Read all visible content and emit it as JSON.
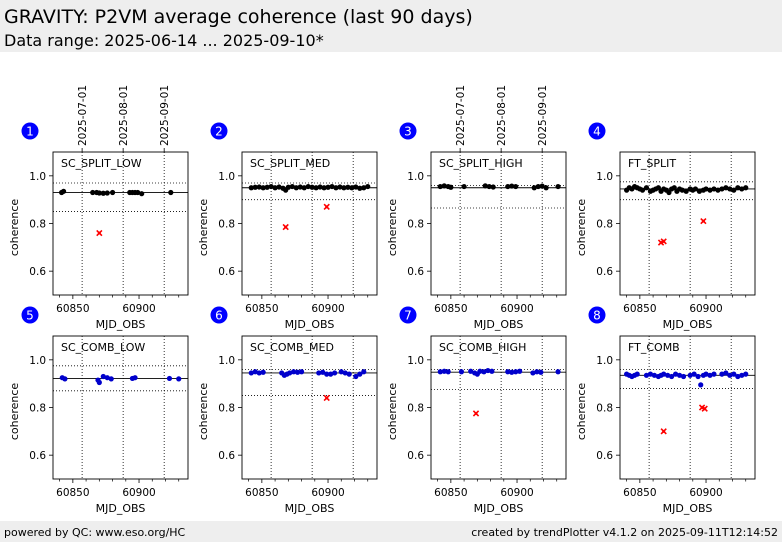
{
  "header": {
    "title": "GRAVITY: P2VM average coherence (last 90 days)",
    "subtitle": "Data range: 2025-06-14 ... 2025-09-10*"
  },
  "footer": {
    "left": "powered by QC: www.eso.org/HC",
    "right": "created by trendPlotter v4.1.2 on 2025-09-11T12:14:52"
  },
  "colors": {
    "black": "#000000",
    "blue": "#0000cc",
    "red": "#ff0000",
    "badge": "#0000ff"
  },
  "chart_data": [
    {
      "type": "scatter",
      "panel": "1",
      "label": "SC_SPLIT_LOW",
      "xlabel": "MJD_OBS",
      "ylabel": "coherence",
      "xticks": [
        60850,
        60900
      ],
      "yticks": [
        0.6,
        0.8,
        1.0
      ],
      "ylim": [
        0.5,
        1.1
      ],
      "top_ticks": [
        "2025-07-01",
        "2025-08-01",
        "2025-09-01"
      ],
      "median": 0.93,
      "limits": [
        0.97,
        0.85
      ],
      "series": [
        {
          "color": "black",
          "points": [
            [
              60841.5,
              0.93
            ],
            [
              60843,
              0.935
            ],
            [
              60865,
              0.93
            ],
            [
              60868,
              0.93
            ],
            [
              60870,
              0.928
            ],
            [
              60873,
              0.927
            ],
            [
              60876,
              0.928
            ],
            [
              60880,
              0.93
            ],
            [
              60893,
              0.93
            ],
            [
              60895,
              0.93
            ],
            [
              60897,
              0.93
            ],
            [
              60899,
              0.93
            ],
            [
              60902,
              0.925
            ],
            [
              60924,
              0.93
            ]
          ]
        },
        {
          "color": "red",
          "marker": "x",
          "points": [
            [
              60870,
              0.76
            ]
          ]
        }
      ]
    },
    {
      "type": "scatter",
      "panel": "2",
      "label": "SC_SPLIT_MED",
      "xlabel": "MJD_OBS",
      "ylabel": "coherence",
      "xticks": [
        60850,
        60900
      ],
      "yticks": [
        0.6,
        0.8,
        1.0
      ],
      "ylim": [
        0.5,
        1.1
      ],
      "top_ticks": [],
      "median": 0.95,
      "limits": [
        0.97,
        0.9
      ],
      "series": [
        {
          "color": "black",
          "points": [
            [
              60842,
              0.95
            ],
            [
              60845,
              0.952
            ],
            [
              60848,
              0.953
            ],
            [
              60851,
              0.95
            ],
            [
              60854,
              0.952
            ],
            [
              60857,
              0.955
            ],
            [
              60860,
              0.95
            ],
            [
              60863,
              0.953
            ],
            [
              60866,
              0.948
            ],
            [
              60868,
              0.94
            ],
            [
              60870,
              0.952
            ],
            [
              60873,
              0.955
            ],
            [
              60876,
              0.95
            ],
            [
              60879,
              0.953
            ],
            [
              60882,
              0.95
            ],
            [
              60885,
              0.955
            ],
            [
              60888,
              0.952
            ],
            [
              60891,
              0.95
            ],
            [
              60894,
              0.953
            ],
            [
              60897,
              0.95
            ],
            [
              60900,
              0.952
            ],
            [
              60903,
              0.955
            ],
            [
              60906,
              0.95
            ],
            [
              60909,
              0.953
            ],
            [
              60912,
              0.95
            ],
            [
              60915,
              0.952
            ],
            [
              60918,
              0.95
            ],
            [
              60921,
              0.953
            ],
            [
              60924,
              0.948
            ],
            [
              60927,
              0.95
            ],
            [
              60930,
              0.955
            ]
          ]
        },
        {
          "color": "red",
          "marker": "x",
          "points": [
            [
              60868,
              0.785
            ],
            [
              60899,
              0.87
            ]
          ]
        }
      ]
    },
    {
      "type": "scatter",
      "panel": "3",
      "label": "SC_SPLIT_HIGH",
      "xlabel": "MJD_OBS",
      "ylabel": "coherence",
      "xticks": [
        60850,
        60900
      ],
      "yticks": [
        0.6,
        0.8,
        1.0
      ],
      "ylim": [
        0.5,
        1.1
      ],
      "top_ticks": [
        "2025-07-01",
        "2025-08-01",
        "2025-09-01"
      ],
      "median": 0.95,
      "limits": [
        0.96,
        0.865
      ],
      "series": [
        {
          "color": "black",
          "points": [
            [
              60842,
              0.955
            ],
            [
              60845,
              0.958
            ],
            [
              60848,
              0.955
            ],
            [
              60850,
              0.952
            ],
            [
              60860,
              0.955
            ],
            [
              60876,
              0.958
            ],
            [
              60879,
              0.955
            ],
            [
              60882,
              0.953
            ],
            [
              60893,
              0.955
            ],
            [
              60896,
              0.957
            ],
            [
              60899,
              0.955
            ],
            [
              60913,
              0.95
            ],
            [
              60916,
              0.955
            ],
            [
              60919,
              0.957
            ],
            [
              60922,
              0.95
            ],
            [
              60931,
              0.955
            ]
          ]
        }
      ]
    },
    {
      "type": "scatter",
      "panel": "4",
      "label": "FT_SPLIT",
      "xlabel": "MJD_OBS",
      "ylabel": "coherence",
      "xticks": [
        60850,
        60900
      ],
      "yticks": [
        0.6,
        0.8,
        1.0
      ],
      "ylim": [
        0.5,
        1.1
      ],
      "top_ticks": [],
      "median": 0.945,
      "limits": [
        0.975,
        0.9
      ],
      "series": [
        {
          "color": "black",
          "points": [
            [
              60840,
              0.94
            ],
            [
              60842,
              0.95
            ],
            [
              60844,
              0.945
            ],
            [
              60846,
              0.955
            ],
            [
              60848,
              0.95
            ],
            [
              60850,
              0.945
            ],
            [
              60852,
              0.94
            ],
            [
              60855,
              0.95
            ],
            [
              60858,
              0.935
            ],
            [
              60860,
              0.94
            ],
            [
              60862,
              0.945
            ],
            [
              60864,
              0.95
            ],
            [
              60866,
              0.935
            ],
            [
              60868,
              0.945
            ],
            [
              60870,
              0.94
            ],
            [
              60872,
              0.93
            ],
            [
              60874,
              0.945
            ],
            [
              60876,
              0.95
            ],
            [
              60878,
              0.935
            ],
            [
              60880,
              0.945
            ],
            [
              60882,
              0.94
            ],
            [
              60885,
              0.935
            ],
            [
              60888,
              0.945
            ],
            [
              60890,
              0.94
            ],
            [
              60892,
              0.945
            ],
            [
              60895,
              0.935
            ],
            [
              60898,
              0.94
            ],
            [
              60900,
              0.945
            ],
            [
              60903,
              0.94
            ],
            [
              60906,
              0.945
            ],
            [
              60909,
              0.94
            ],
            [
              60912,
              0.945
            ],
            [
              60915,
              0.95
            ],
            [
              60918,
              0.945
            ],
            [
              60921,
              0.94
            ],
            [
              60924,
              0.95
            ],
            [
              60927,
              0.945
            ],
            [
              60930,
              0.95
            ]
          ]
        },
        {
          "color": "red",
          "marker": "x",
          "points": [
            [
              60866,
              0.72
            ],
            [
              60868,
              0.725
            ],
            [
              60898,
              0.81
            ]
          ]
        }
      ]
    },
    {
      "type": "scatter",
      "panel": "5",
      "label": "SC_COMB_LOW",
      "xlabel": "MJD_OBS",
      "ylabel": "coherence",
      "xticks": [
        60850,
        60900
      ],
      "yticks": [
        0.6,
        0.8,
        1.0
      ],
      "ylim": [
        0.5,
        1.1
      ],
      "top_ticks": [],
      "median": 0.922,
      "limits": [
        0.975,
        0.87
      ],
      "series": [
        {
          "color": "blue",
          "points": [
            [
              60842,
              0.925
            ],
            [
              60844,
              0.92
            ],
            [
              60869,
              0.915
            ],
            [
              60870,
              0.905
            ],
            [
              60873,
              0.93
            ],
            [
              60876,
              0.925
            ],
            [
              60879,
              0.92
            ],
            [
              60895,
              0.922
            ],
            [
              60897,
              0.925
            ],
            [
              60923,
              0.922
            ],
            [
              60930,
              0.92
            ]
          ]
        }
      ]
    },
    {
      "type": "scatter",
      "panel": "6",
      "label": "SC_COMB_MED",
      "xlabel": "MJD_OBS",
      "ylabel": "coherence",
      "xticks": [
        60850,
        60900
      ],
      "yticks": [
        0.6,
        0.8,
        1.0
      ],
      "ylim": [
        0.5,
        1.1
      ],
      "top_ticks": [],
      "median": 0.945,
      "limits": [
        0.96,
        0.85
      ],
      "series": [
        {
          "color": "blue",
          "points": [
            [
              60842,
              0.945
            ],
            [
              60845,
              0.95
            ],
            [
              60848,
              0.945
            ],
            [
              60851,
              0.948
            ],
            [
              60865,
              0.945
            ],
            [
              60867,
              0.935
            ],
            [
              60869,
              0.94
            ],
            [
              60871,
              0.945
            ],
            [
              60874,
              0.95
            ],
            [
              60877,
              0.948
            ],
            [
              60880,
              0.95
            ],
            [
              60893,
              0.945
            ],
            [
              60896,
              0.948
            ],
            [
              60899,
              0.94
            ],
            [
              60902,
              0.94
            ],
            [
              60905,
              0.945
            ],
            [
              60910,
              0.95
            ],
            [
              60913,
              0.945
            ],
            [
              60916,
              0.94
            ],
            [
              60921,
              0.93
            ],
            [
              60924,
              0.94
            ],
            [
              60927,
              0.95
            ]
          ]
        },
        {
          "color": "red",
          "marker": "x",
          "points": [
            [
              60899,
              0.84
            ]
          ]
        }
      ]
    },
    {
      "type": "scatter",
      "panel": "7",
      "label": "SC_COMB_HIGH",
      "xlabel": "MJD_OBS",
      "ylabel": "coherence",
      "xticks": [
        60850,
        60900
      ],
      "yticks": [
        0.6,
        0.8,
        1.0
      ],
      "ylim": [
        0.5,
        1.1
      ],
      "top_ticks": [],
      "median": 0.948,
      "limits": [
        0.96,
        0.875
      ],
      "series": [
        {
          "color": "blue",
          "points": [
            [
              60842,
              0.95
            ],
            [
              60845,
              0.952
            ],
            [
              60848,
              0.95
            ],
            [
              60858,
              0.95
            ],
            [
              60865,
              0.952
            ],
            [
              60868,
              0.945
            ],
            [
              60870,
              0.94
            ],
            [
              60872,
              0.952
            ],
            [
              60875,
              0.95
            ],
            [
              60878,
              0.955
            ],
            [
              60881,
              0.952
            ],
            [
              60893,
              0.95
            ],
            [
              60896,
              0.948
            ],
            [
              60899,
              0.95
            ],
            [
              60902,
              0.952
            ],
            [
              60912,
              0.945
            ],
            [
              60915,
              0.95
            ],
            [
              60918,
              0.948
            ],
            [
              60931,
              0.95
            ]
          ]
        },
        {
          "color": "red",
          "marker": "x",
          "points": [
            [
              60869,
              0.775
            ]
          ]
        }
      ]
    },
    {
      "type": "scatter",
      "panel": "8",
      "label": "FT_COMB",
      "xlabel": "MJD_OBS",
      "ylabel": "coherence",
      "xticks": [
        60850,
        60900
      ],
      "yticks": [
        0.6,
        0.8,
        1.0
      ],
      "ylim": [
        0.5,
        1.1
      ],
      "top_ticks": [],
      "median": 0.935,
      "limits": [
        0.96,
        0.88
      ],
      "series": [
        {
          "color": "blue",
          "points": [
            [
              60840,
              0.94
            ],
            [
              60842,
              0.935
            ],
            [
              60844,
              0.93
            ],
            [
              60846,
              0.935
            ],
            [
              60848,
              0.94
            ],
            [
              60855,
              0.935
            ],
            [
              60858,
              0.94
            ],
            [
              60861,
              0.935
            ],
            [
              60864,
              0.93
            ],
            [
              60866,
              0.935
            ],
            [
              60868,
              0.94
            ],
            [
              60871,
              0.935
            ],
            [
              60874,
              0.93
            ],
            [
              60877,
              0.94
            ],
            [
              60880,
              0.935
            ],
            [
              60883,
              0.93
            ],
            [
              60888,
              0.935
            ],
            [
              60891,
              0.94
            ],
            [
              60894,
              0.93
            ],
            [
              60896,
              0.895
            ],
            [
              60898,
              0.935
            ],
            [
              60900,
              0.94
            ],
            [
              60903,
              0.935
            ],
            [
              60906,
              0.94
            ],
            [
              60912,
              0.94
            ],
            [
              60915,
              0.945
            ],
            [
              60918,
              0.935
            ],
            [
              60921,
              0.94
            ],
            [
              60924,
              0.93
            ],
            [
              60927,
              0.935
            ],
            [
              60930,
              0.94
            ]
          ]
        },
        {
          "color": "red",
          "marker": "x",
          "points": [
            [
              60868,
              0.7
            ],
            [
              60897,
              0.8
            ],
            [
              60899,
              0.795
            ]
          ]
        }
      ]
    }
  ]
}
